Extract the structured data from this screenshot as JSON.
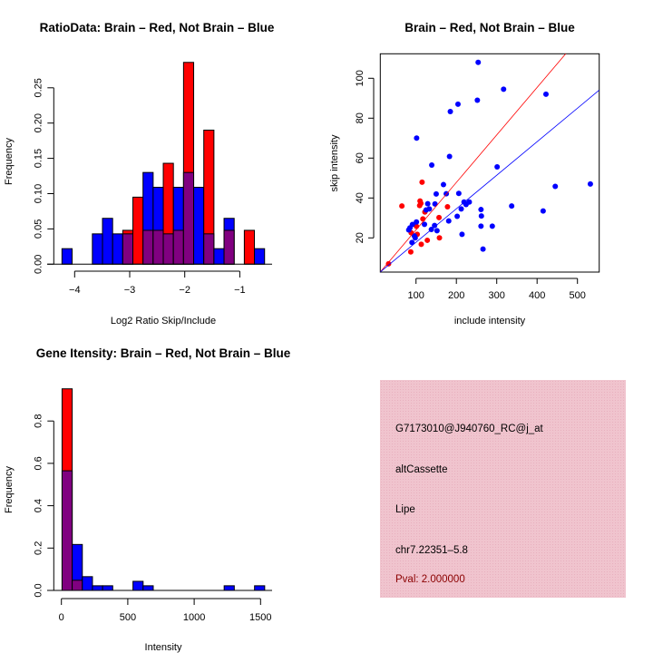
{
  "colors": {
    "brain": "#ff0000",
    "not_brain": "#0000ff",
    "overlap": "#800080",
    "info_bg": "#f0c4ce",
    "pval": "#8b0000"
  },
  "chart_data": [
    {
      "type": "bar",
      "subtype": "overlaid-histogram",
      "title": "RatioData: Brain – Red, Not Brain – Blue",
      "xlabel": "Log2 Ratio Skip/Include",
      "ylabel": "Frequency",
      "xticks": [
        -4,
        -3,
        -2,
        -1
      ],
      "xtick_labels": [
        "−4",
        "−3",
        "−2",
        "−1"
      ],
      "yticks": [
        0,
        0.05,
        0.1,
        0.15,
        0.2,
        0.25
      ],
      "ytick_labels": [
        "0.00",
        "0.05",
        "0.10",
        "0.15",
        "0.20",
        "0.25"
      ],
      "bin_start": -4.23,
      "bin_width": 0.184,
      "series": [
        {
          "name": "Not Brain",
          "color": "#0000ff",
          "values": [
            0.022,
            0,
            0,
            0.043,
            0.065,
            0.043,
            0.043,
            0,
            0.13,
            0.109,
            0.043,
            0.109,
            0.13,
            0.109,
            0.043,
            0.022,
            0.065,
            0,
            0,
            0.022
          ]
        },
        {
          "name": "Brain",
          "color": "#ff0000",
          "values": [
            0,
            0,
            0,
            0,
            0,
            0,
            0.048,
            0.095,
            0.048,
            0.048,
            0.143,
            0.048,
            0.286,
            0,
            0.19,
            0,
            0.048,
            0,
            0.048,
            0
          ]
        }
      ]
    },
    {
      "type": "scatter",
      "title": "Brain – Red, Not Brain – Blue",
      "xlabel": "include intensity",
      "ylabel": "skip intensity",
      "xlim": [
        11.5,
        554
      ],
      "ylim": [
        2.9,
        112.3
      ],
      "xticks": [
        100,
        200,
        300,
        400,
        500
      ],
      "xtick_labels": [
        "100",
        "200",
        "300",
        "400",
        "500"
      ],
      "yticks": [
        20,
        40,
        60,
        80,
        100
      ],
      "ytick_labels": [
        "20",
        "40",
        "60",
        "80",
        "100"
      ],
      "series": [
        {
          "name": "Not Brain",
          "color": "#0000ff",
          "points": [
            [
              254,
              108
            ],
            [
              317,
              94.5
            ],
            [
              422,
              92
            ],
            [
              252,
              89
            ],
            [
              204,
              87
            ],
            [
              185,
              83.3
            ],
            [
              101.5,
              70
            ],
            [
              183,
              60.8
            ],
            [
              139,
              56.5
            ],
            [
              301,
              55.6
            ],
            [
              532,
              47
            ],
            [
              168,
              46.7
            ],
            [
              445,
              45.8
            ],
            [
              150,
              42
            ],
            [
              175,
              42.1
            ],
            [
              206,
              42.3
            ],
            [
              147,
              37
            ],
            [
              129,
              37.1
            ],
            [
              219,
              38
            ],
            [
              232,
              38
            ],
            [
              224,
              36.7
            ],
            [
              337,
              36
            ],
            [
              212,
              34.5
            ],
            [
              261,
              34.2
            ],
            [
              133,
              34.5
            ],
            [
              125,
              34
            ],
            [
              415,
              33.5
            ],
            [
              262,
              31
            ],
            [
              202,
              30.8
            ],
            [
              181,
              28.5
            ],
            [
              101,
              28
            ],
            [
              121,
              26.8
            ],
            [
              91,
              26.7
            ],
            [
              146,
              26.2
            ],
            [
              85,
              25
            ],
            [
              82,
              24
            ],
            [
              138,
              24.2
            ],
            [
              152,
              23.6
            ],
            [
              261,
              25.9
            ],
            [
              289,
              25.9
            ],
            [
              96,
              21
            ],
            [
              98,
              20
            ],
            [
              90,
              17.7
            ],
            [
              214,
              21.8
            ],
            [
              266,
              14.4
            ]
          ]
        },
        {
          "name": "Brain",
          "color": "#ff0000",
          "points": [
            [
              65,
              36
            ],
            [
              115,
              47.9
            ],
            [
              110,
              38.5
            ],
            [
              112,
              37.3
            ],
            [
              109,
              36.2
            ],
            [
              122,
              33
            ],
            [
              117,
              29.5
            ],
            [
              178,
              35.6
            ],
            [
              157,
              30.2
            ],
            [
              101,
              25.8
            ],
            [
              88,
              22.6
            ],
            [
              103,
              21.8
            ],
            [
              158,
              20
            ],
            [
              128,
              18.8
            ],
            [
              113,
              16.8
            ],
            [
              87,
              13
            ],
            [
              32,
              7
            ]
          ]
        }
      ],
      "fit_lines": [
        {
          "name": "Brain fit",
          "color": "#ff0000",
          "slope": 0.238,
          "intercept": 0.2
        },
        {
          "name": "Not Brain fit",
          "color": "#0000ff",
          "slope": 0.168,
          "intercept": 1.0
        }
      ]
    },
    {
      "type": "bar",
      "subtype": "overlaid-histogram",
      "title": "Gene Itensity: Brain – Red, Not Brain – Blue",
      "xlabel": "Intensity",
      "ylabel": "Frequency",
      "xticks": [
        0,
        500,
        1000,
        1500
      ],
      "xtick_labels": [
        "0",
        "500",
        "1000",
        "1500"
      ],
      "yticks": [
        0,
        0.2,
        0.4,
        0.6,
        0.8
      ],
      "ytick_labels": [
        "0.0",
        "0.2",
        "0.4",
        "0.6",
        "0.8"
      ],
      "bin_start": 5,
      "bin_width": 76.3,
      "series": [
        {
          "name": "Not Brain",
          "color": "#0000ff",
          "values": [
            0.565,
            0.217,
            0.065,
            0.022,
            0.022,
            0,
            0,
            0.043,
            0.022,
            0,
            0,
            0,
            0,
            0,
            0,
            0,
            0.022,
            0,
            0,
            0.022
          ]
        },
        {
          "name": "Brain",
          "color": "#ff0000",
          "values": [
            0.952,
            0.048,
            0,
            0,
            0,
            0,
            0,
            0,
            0,
            0,
            0,
            0,
            0,
            0,
            0,
            0,
            0,
            0,
            0,
            0
          ]
        }
      ]
    }
  ],
  "info_panel": {
    "probe_id": "G7173010@J940760_RC@j_at",
    "event_type": "altCassette",
    "gene": "Lipe",
    "location": "chr7.22351–5.8",
    "pval": "Pval: 2.000000"
  }
}
